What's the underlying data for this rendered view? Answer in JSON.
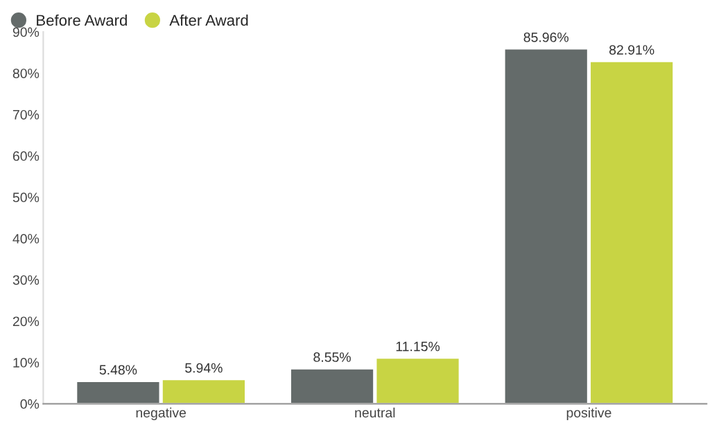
{
  "chart_data": {
    "type": "bar",
    "categories": [
      "negative",
      "neutral",
      "positive"
    ],
    "series": [
      {
        "name": "Before Award",
        "color": "#646b6a",
        "values": [
          5.48,
          8.55,
          85.96
        ],
        "value_labels": [
          "5.48%",
          "8.55%",
          "85.96%"
        ]
      },
      {
        "name": "After Award",
        "color": "#c8d444",
        "values": [
          5.94,
          11.15,
          82.91
        ],
        "value_labels": [
          "5.94%",
          "11.15%",
          "82.91%"
        ]
      }
    ],
    "ylim": [
      0,
      90
    ],
    "yticks": [
      {
        "value": 0,
        "label": "0%"
      },
      {
        "value": 10,
        "label": "10%"
      },
      {
        "value": 20,
        "label": "20%"
      },
      {
        "value": 30,
        "label": "30%"
      },
      {
        "value": 40,
        "label": "40%"
      },
      {
        "value": 50,
        "label": "50%"
      },
      {
        "value": 60,
        "label": "60%"
      },
      {
        "value": 70,
        "label": "70%"
      },
      {
        "value": 80,
        "label": "80%"
      },
      {
        "value": 90,
        "label": "90%"
      }
    ],
    "legend": "top left",
    "grid": false
  }
}
